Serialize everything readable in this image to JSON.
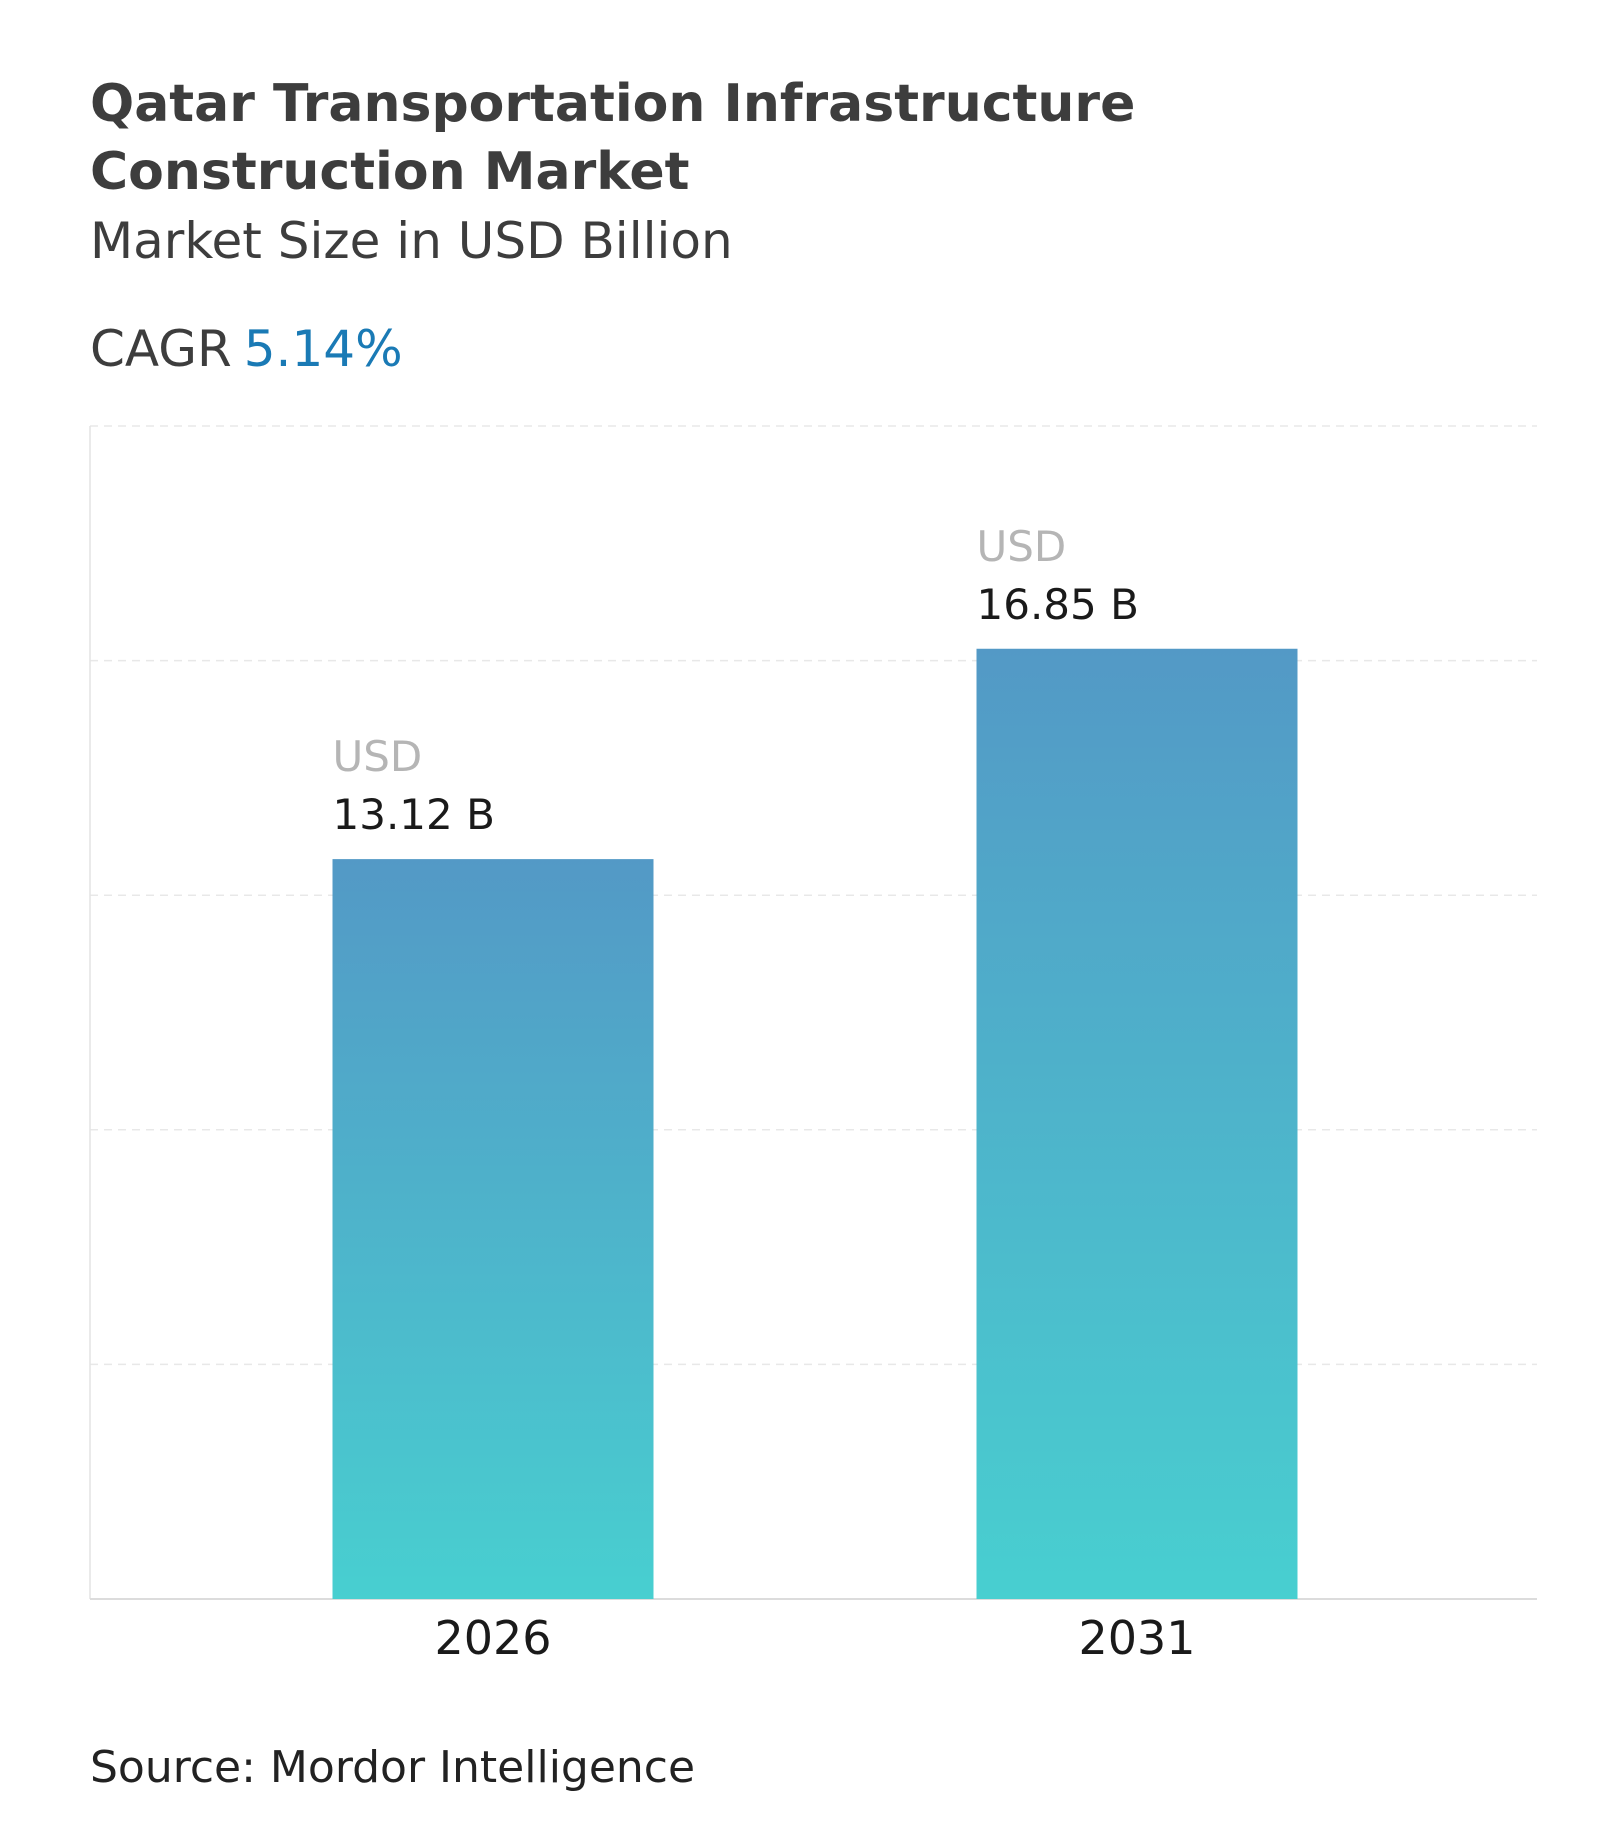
{
  "chart_data": {
    "type": "bar",
    "title": "Qatar Transportation Infrastructure Construction Market",
    "subtitle": "Market Size in USD Billion",
    "cagr_label": "CAGR",
    "cagr_value": "5.14%",
    "categories": [
      "2026",
      "2031"
    ],
    "values": [
      13.12,
      16.85
    ],
    "value_prefix": "USD",
    "value_labels": [
      "13.12 B",
      "16.85 B"
    ],
    "color": "#4fb3cc",
    "gradient": [
      "#5399c6",
      "#48cfd0"
    ],
    "ylim": [
      0,
      20.8
    ],
    "grid": true,
    "source": "Source: Mordor Intelligence"
  }
}
